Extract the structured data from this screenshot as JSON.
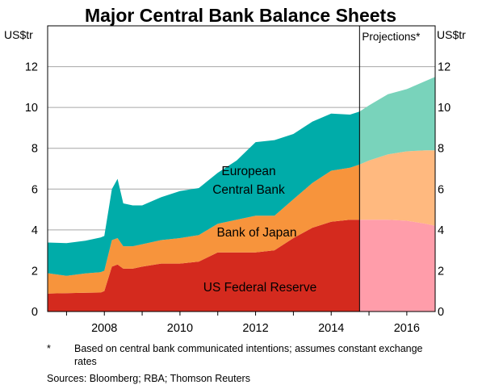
{
  "chart_data": {
    "type": "area",
    "title": "Major Central Bank Balance Sheets",
    "ylabel_left": "US$tr",
    "ylabel_right": "US$tr",
    "ylim": [
      0,
      14
    ],
    "yticks": [
      0,
      2,
      4,
      6,
      8,
      10,
      12
    ],
    "xlim": [
      2006.5,
      2016.75
    ],
    "xticks": [
      2008,
      2010,
      2012,
      2014,
      2016
    ],
    "xtick_labels": [
      "2008",
      "2010",
      "2012",
      "2014",
      "2016"
    ],
    "stacked": true,
    "grid": "horizontal",
    "projection_start": 2014.75,
    "projection_label": "Projections*",
    "x": [
      2006.5,
      2007.0,
      2007.5,
      2007.9,
      2008.0,
      2008.2,
      2008.35,
      2008.5,
      2008.75,
      2009.0,
      2009.5,
      2010.0,
      2010.5,
      2011.0,
      2011.5,
      2012.0,
      2012.5,
      2013.0,
      2013.5,
      2014.0,
      2014.5,
      2014.75,
      2015.0,
      2015.5,
      2016.0,
      2016.5,
      2016.75
    ],
    "series": [
      {
        "name": "US Federal Reserve",
        "values": [
          0.88,
          0.9,
          0.92,
          0.93,
          1.0,
          2.2,
          2.3,
          2.1,
          2.1,
          2.2,
          2.35,
          2.35,
          2.45,
          2.9,
          2.9,
          2.9,
          3.0,
          3.6,
          4.1,
          4.4,
          4.5,
          4.5,
          4.5,
          4.5,
          4.45,
          4.3,
          4.2
        ],
        "color": "#d42a1e"
      },
      {
        "name": "Bank of Japan",
        "values": [
          1.0,
          0.85,
          0.95,
          1.0,
          1.0,
          1.3,
          1.3,
          1.1,
          1.1,
          1.1,
          1.15,
          1.25,
          1.3,
          1.4,
          1.6,
          1.8,
          1.7,
          1.9,
          2.2,
          2.5,
          2.55,
          2.7,
          2.9,
          3.2,
          3.4,
          3.6,
          3.7
        ],
        "color": "#f7943c"
      },
      {
        "name": "European Central Bank",
        "values": [
          1.5,
          1.6,
          1.6,
          1.7,
          1.7,
          2.5,
          2.9,
          2.1,
          2.0,
          1.9,
          2.1,
          2.3,
          2.3,
          2.5,
          2.9,
          3.6,
          3.7,
          3.2,
          3.0,
          2.8,
          2.6,
          2.6,
          2.7,
          2.95,
          3.05,
          3.4,
          3.6
        ],
        "color": "#00aca9"
      }
    ],
    "projection_colors": [
      "#ff9daa",
      "#ffb97f",
      "#79d3bb"
    ],
    "series_labels": [
      "US Federal Reserve",
      "Bank of Japan",
      "European\nCentral Bank"
    ],
    "footnote_mark": "*",
    "footnote": "Based on central bank communicated intentions; assumes constant exchange rates",
    "sources": "Sources:  Bloomberg; RBA; Thomson Reuters"
  }
}
